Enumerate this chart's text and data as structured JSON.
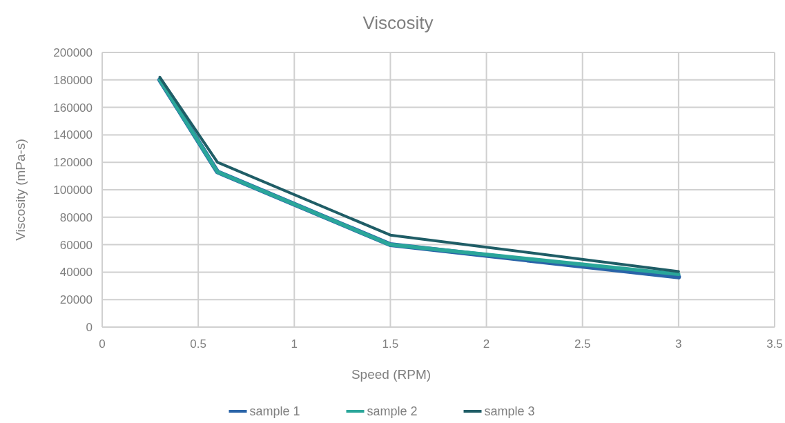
{
  "chart_data": {
    "type": "line",
    "title": "Viscosity",
    "xlabel": "Speed (RPM)",
    "ylabel": "Viscosity (mPa-s)",
    "x": [
      0.3,
      0.6,
      1.5,
      3
    ],
    "series": [
      {
        "name": "sample 1",
        "color": "#2a64a8",
        "values": [
          180000,
          113000,
          60000,
          36500
        ]
      },
      {
        "name": "sample 2",
        "color": "#2aa69a",
        "values": [
          180000,
          113000,
          60000,
          38500
        ]
      },
      {
        "name": "sample 3",
        "color": "#1f5d66",
        "values": [
          182000,
          120000,
          67000,
          40500
        ]
      }
    ],
    "xlim": [
      0,
      3.5
    ],
    "xticks": [
      0,
      0.5,
      1,
      1.5,
      2,
      2.5,
      3,
      3.5
    ],
    "ylim": [
      0,
      200000
    ],
    "yticks": [
      0,
      20000,
      40000,
      60000,
      80000,
      100000,
      120000,
      140000,
      160000,
      180000,
      200000
    ],
    "grid": true,
    "legend": "bottom",
    "marker": "none",
    "line_style": "solid"
  }
}
